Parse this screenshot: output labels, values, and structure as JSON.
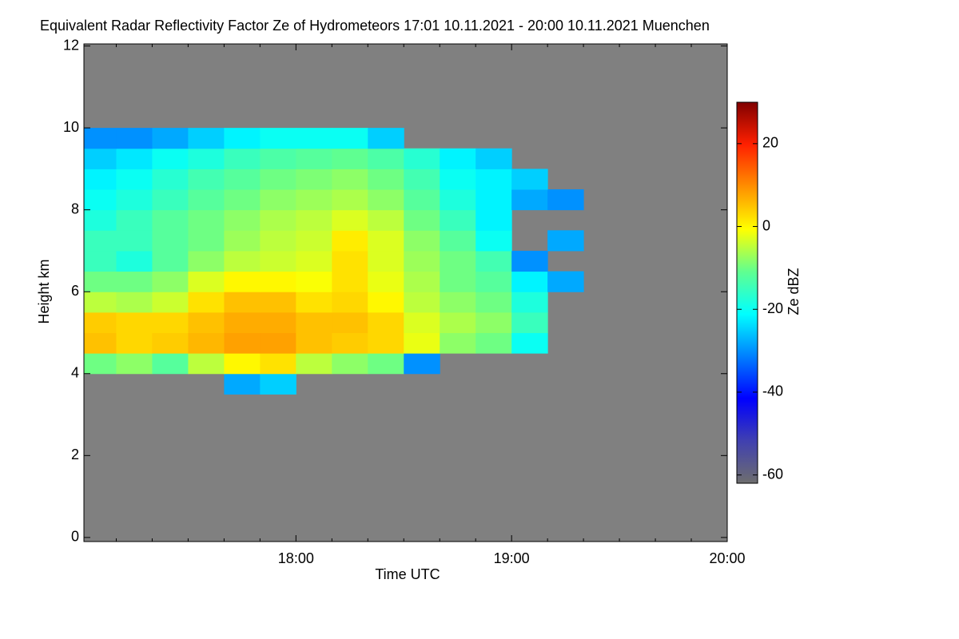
{
  "chart_data": {
    "type": "heatmap",
    "title": "Equivalent Radar Reflectivity Factor Ze of Hydrometeors    17:01 10.11.2021 - 20:00 10.11.2021 Muenchen",
    "xlabel": "Time UTC",
    "ylabel": "Height km",
    "colorbar_label": "Ze dBZ",
    "background": "#808080",
    "xlim": [
      17.0167,
      20.0
    ],
    "xticks": [
      {
        "value": 18,
        "label": "18:00"
      },
      {
        "value": 19,
        "label": "19:00"
      },
      {
        "value": 20,
        "label": "20:00"
      }
    ],
    "xminorticks": [
      17.1667,
      17.3333,
      17.5,
      17.6667,
      17.8333,
      18.1667,
      18.3333,
      18.5,
      18.6667,
      18.8333,
      19.1667,
      19.3333,
      19.5,
      19.6667,
      19.8333
    ],
    "ylim": [
      -0.1,
      12.05
    ],
    "yticks": [
      0,
      2,
      4,
      6,
      8,
      10,
      12
    ],
    "zlim": [
      -62,
      30
    ],
    "zticks": [
      -60,
      -40,
      -20,
      0,
      20
    ],
    "colormap": [
      "#6e6e6e",
      "#4040b0",
      "#0000ff",
      "#0080ff",
      "#00ffff",
      "#60ff90",
      "#ffff00",
      "#ff9000",
      "#ff2000",
      "#800000"
    ],
    "xbins": [
      17.0,
      17.1667,
      17.3333,
      17.5,
      17.6667,
      17.8333,
      18.0,
      18.1667,
      18.3333,
      18.5,
      18.6667,
      18.8333,
      19.0,
      19.1667,
      19.3333,
      19.5
    ],
    "ybins": [
      3.5,
      4.0,
      4.5,
      5.0,
      5.5,
      6.0,
      6.5,
      7.0,
      7.5,
      8.0,
      8.5,
      9.0,
      9.5,
      10.0,
      10.5
    ],
    "values": [
      [
        null,
        null,
        null,
        null,
        -28,
        -25,
        null,
        null,
        null,
        null,
        null,
        null,
        null,
        null,
        null
      ],
      [
        -10,
        -8,
        -12,
        -5,
        0,
        2,
        -5,
        -8,
        -10,
        -30,
        null,
        null,
        null,
        null,
        null
      ],
      [
        5,
        3,
        4,
        6,
        8,
        8,
        5,
        4,
        3,
        -2,
        -8,
        -10,
        -20,
        null,
        null
      ],
      [
        4,
        3,
        3,
        5,
        7,
        7,
        5,
        5,
        3,
        -3,
        -6,
        -8,
        -15,
        null,
        null
      ],
      [
        -5,
        -6,
        -4,
        2,
        5,
        5,
        2,
        3,
        0,
        -5,
        -8,
        -10,
        -18,
        null,
        null
      ],
      [
        -10,
        -10,
        -8,
        -3,
        0,
        0,
        -1,
        2,
        -2,
        -6,
        -10,
        -12,
        -22,
        -28,
        null
      ],
      [
        -15,
        -18,
        -12,
        -8,
        -5,
        -4,
        -3,
        2,
        -3,
        -7,
        -10,
        -14,
        -30,
        null,
        null
      ],
      [
        -15,
        -15,
        -12,
        -10,
        -7,
        -5,
        -4,
        1,
        -3,
        -8,
        -12,
        -20,
        null,
        -28,
        null
      ],
      [
        -18,
        -15,
        -12,
        -10,
        -8,
        -6,
        -5,
        -3,
        -5,
        -10,
        -15,
        -22,
        null,
        null,
        null
      ],
      [
        -20,
        -18,
        -15,
        -12,
        -10,
        -8,
        -7,
        -6,
        -8,
        -12,
        -18,
        -22,
        -28,
        -30,
        null
      ],
      [
        -22,
        -20,
        -17,
        -14,
        -12,
        -10,
        -9,
        -8,
        -10,
        -14,
        -20,
        -22,
        -25,
        null,
        null
      ],
      [
        -25,
        -23,
        -20,
        -18,
        -15,
        -13,
        -12,
        -11,
        -13,
        -17,
        -22,
        -25,
        null,
        null,
        null
      ],
      [
        -30,
        -30,
        -28,
        -25,
        -22,
        -20,
        -20,
        -20,
        -25,
        null,
        null,
        null,
        null,
        null,
        null
      ],
      [
        null,
        null,
        null,
        null,
        null,
        null,
        null,
        null,
        null,
        null,
        null,
        null,
        null,
        null,
        null
      ]
    ]
  }
}
